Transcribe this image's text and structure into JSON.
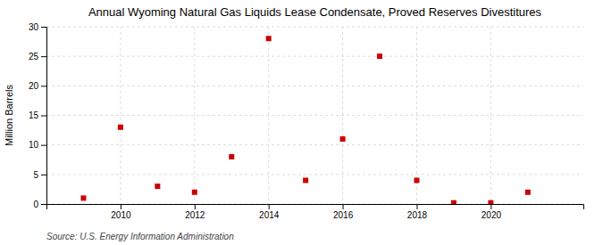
{
  "chart_data": {
    "type": "scatter",
    "title": "Annual Wyoming Natural Gas Liquids Lease Condensate, Proved Reserves Divestitures",
    "ylabel": "Million Barrels",
    "source": "Source: U.S. Energy Information Administration",
    "x": [
      2009,
      2010,
      2011,
      2012,
      2013,
      2014,
      2015,
      2016,
      2017,
      2018,
      2019,
      2020,
      2021
    ],
    "values": [
      1.0,
      13.0,
      3.0,
      2.0,
      8.0,
      28.0,
      4.0,
      11.0,
      25.0,
      4.0,
      0.2,
      0.2,
      2.0
    ],
    "color": "#cc0000",
    "marker": "square",
    "xlim": [
      2008.0,
      2022.5
    ],
    "xticks": [
      2010,
      2012,
      2014,
      2016,
      2018,
      2020
    ],
    "ylim": [
      0,
      30
    ],
    "yticks": [
      0,
      5,
      10,
      15,
      20,
      25,
      30
    ],
    "grid": true
  }
}
